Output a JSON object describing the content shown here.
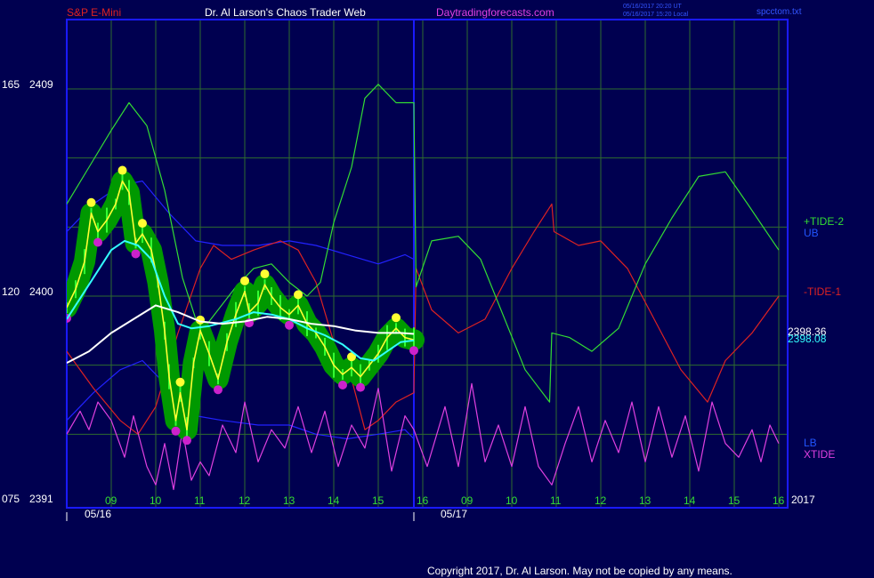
{
  "header": {
    "symbol": "S&P E-Mini",
    "title": "Dr. Al Larson's Chaos Trader Web",
    "site": "Daytradingforecasts.com",
    "timestamp_ut": "05/16/2017 20:20 UT",
    "timestamp_local": "05/16/2017 15:20 Local",
    "file": "spcctom.txt"
  },
  "footer": {
    "copyright": "Copyright 2017, Dr. Al Larson. May not be copied by any means."
  },
  "colors": {
    "background": "#000050",
    "frame": "#1a1aff",
    "grid": "#2e6b2e",
    "tide2": "#33dd33",
    "tide1": "#dd2222",
    "bands": "#2222ff",
    "xtide": "#e040e0",
    "ma_white": "#ffffff",
    "ma_cyan": "#33ffff",
    "price_yellow": "#ffff33",
    "halo_green": "#009900",
    "dot_magenta": "#cc22cc"
  },
  "chart_data": {
    "type": "line",
    "title": "S&P E-Mini",
    "xlabel": "",
    "ylabel": "",
    "grid": true,
    "price_axis": {
      "ticks": [
        2391,
        2400,
        2409
      ],
      "range": [
        2391,
        2409
      ]
    },
    "oscillator_axis": {
      "ticks": [
        "075",
        "120",
        "165"
      ],
      "range": [
        75,
        165
      ]
    },
    "y_tick_labels": [
      {
        "osc": "165",
        "price": "2409"
      },
      {
        "osc": "120",
        "price": "2400"
      },
      {
        "osc": "075",
        "price": "2391"
      }
    ],
    "x_hour_labels": [
      "09",
      "10",
      "11",
      "12",
      "13",
      "14",
      "15",
      "16",
      "09",
      "10",
      "11",
      "12",
      "13",
      "14",
      "15",
      "16"
    ],
    "x_date_labels": [
      "05/16",
      "05/17"
    ],
    "year_label": "2017",
    "right_labels": {
      "tide2": "+TIDE-2",
      "ub": "UB",
      "tide1": "-TIDE-1",
      "lb": "LB",
      "xtide": "XTIDE",
      "value_white": "2398.36",
      "value_cyan": "2398.08"
    },
    "x_domain": [
      8.0,
      24.2
    ],
    "now_x": 15.8,
    "series": [
      {
        "name": "+TIDE-2",
        "axis": "osc",
        "points": [
          [
            8.0,
            140
          ],
          [
            8.5,
            148
          ],
          [
            9.0,
            156
          ],
          [
            9.4,
            162
          ],
          [
            9.8,
            157
          ],
          [
            10.2,
            143
          ],
          [
            10.6,
            124
          ],
          [
            11.0,
            112
          ],
          [
            11.4,
            117
          ],
          [
            11.8,
            122
          ],
          [
            12.2,
            126
          ],
          [
            12.6,
            127
          ],
          [
            13.0,
            123
          ],
          [
            13.4,
            120
          ],
          [
            13.7,
            123
          ],
          [
            14.0,
            136
          ],
          [
            14.4,
            148
          ],
          [
            14.7,
            163
          ],
          [
            15.0,
            166
          ],
          [
            15.4,
            162
          ],
          [
            15.8,
            162
          ],
          [
            15.85,
            122
          ],
          [
            16.2,
            132
          ],
          [
            16.8,
            133
          ],
          [
            17.3,
            128
          ],
          [
            17.8,
            116
          ],
          [
            18.3,
            104
          ],
          [
            18.85,
            97
          ],
          [
            18.9,
            112
          ],
          [
            19.3,
            111
          ],
          [
            19.8,
            108
          ],
          [
            20.4,
            113
          ],
          [
            21.0,
            127
          ],
          [
            21.6,
            137
          ],
          [
            22.2,
            146
          ],
          [
            22.8,
            147
          ],
          [
            23.3,
            140
          ],
          [
            24.0,
            130
          ]
        ]
      },
      {
        "name": "-TIDE-1",
        "axis": "osc",
        "points": [
          [
            8.0,
            108
          ],
          [
            8.6,
            100
          ],
          [
            9.2,
            93
          ],
          [
            9.6,
            90
          ],
          [
            10.0,
            96
          ],
          [
            10.5,
            112
          ],
          [
            11.0,
            126
          ],
          [
            11.3,
            131
          ],
          [
            11.7,
            128
          ],
          [
            12.2,
            130
          ],
          [
            12.8,
            132
          ],
          [
            13.2,
            130
          ],
          [
            13.6,
            123
          ],
          [
            14.0,
            110
          ],
          [
            14.4,
            102
          ],
          [
            14.7,
            91
          ],
          [
            15.0,
            93
          ],
          [
            15.4,
            97
          ],
          [
            15.8,
            99
          ],
          [
            15.85,
            126
          ],
          [
            16.2,
            117
          ],
          [
            16.8,
            112
          ],
          [
            17.4,
            115
          ],
          [
            18.0,
            126
          ],
          [
            18.5,
            134
          ],
          [
            18.9,
            140
          ],
          [
            18.95,
            134
          ],
          [
            19.5,
            131
          ],
          [
            20.0,
            132
          ],
          [
            20.6,
            126
          ],
          [
            21.2,
            115
          ],
          [
            21.8,
            104
          ],
          [
            22.4,
            97
          ],
          [
            22.8,
            106
          ],
          [
            23.4,
            112
          ],
          [
            24.0,
            120
          ]
        ]
      },
      {
        "name": "UB",
        "axis": "osc",
        "points": [
          [
            8.0,
            134
          ],
          [
            8.6,
            140
          ],
          [
            9.2,
            144
          ],
          [
            9.7,
            145
          ],
          [
            10.3,
            138
          ],
          [
            10.9,
            132
          ],
          [
            11.5,
            131
          ],
          [
            12.3,
            131
          ],
          [
            13.0,
            132
          ],
          [
            13.6,
            131
          ],
          [
            14.3,
            129
          ],
          [
            15.0,
            127
          ],
          [
            15.6,
            129
          ],
          [
            15.8,
            128
          ]
        ]
      },
      {
        "name": "LB",
        "axis": "osc",
        "points": [
          [
            8.0,
            93
          ],
          [
            8.6,
            99
          ],
          [
            9.2,
            104
          ],
          [
            9.7,
            106
          ],
          [
            10.3,
            100
          ],
          [
            10.9,
            94
          ],
          [
            11.5,
            93
          ],
          [
            12.3,
            92
          ],
          [
            13.0,
            92
          ],
          [
            13.6,
            90
          ],
          [
            14.3,
            89
          ],
          [
            15.0,
            90
          ],
          [
            15.6,
            91
          ],
          [
            15.8,
            89
          ]
        ]
      },
      {
        "name": "XTIDE",
        "axis": "osc",
        "points": [
          [
            8.0,
            90
          ],
          [
            8.3,
            95
          ],
          [
            8.5,
            91
          ],
          [
            8.7,
            97
          ],
          [
            9.0,
            93
          ],
          [
            9.3,
            85
          ],
          [
            9.5,
            94
          ],
          [
            9.8,
            83
          ],
          [
            10.0,
            79
          ],
          [
            10.2,
            88
          ],
          [
            10.4,
            78
          ],
          [
            10.6,
            91
          ],
          [
            10.8,
            80
          ],
          [
            11.0,
            84
          ],
          [
            11.2,
            81
          ],
          [
            11.5,
            92
          ],
          [
            11.8,
            86
          ],
          [
            12.0,
            97
          ],
          [
            12.3,
            84
          ],
          [
            12.6,
            91
          ],
          [
            12.9,
            87
          ],
          [
            13.2,
            96
          ],
          [
            13.5,
            86
          ],
          [
            13.8,
            95
          ],
          [
            14.1,
            83
          ],
          [
            14.4,
            92
          ],
          [
            14.7,
            87
          ],
          [
            15.0,
            100
          ],
          [
            15.3,
            82
          ],
          [
            15.6,
            94
          ],
          [
            15.8,
            91
          ],
          [
            16.1,
            83
          ],
          [
            16.5,
            96
          ],
          [
            16.8,
            83
          ],
          [
            17.1,
            101
          ],
          [
            17.4,
            84
          ],
          [
            17.7,
            92
          ],
          [
            18.0,
            83
          ],
          [
            18.3,
            96
          ],
          [
            18.6,
            83
          ],
          [
            18.9,
            79
          ],
          [
            19.2,
            88
          ],
          [
            19.5,
            96
          ],
          [
            19.8,
            84
          ],
          [
            20.1,
            93
          ],
          [
            20.4,
            86
          ],
          [
            20.7,
            97
          ],
          [
            21.0,
            84
          ],
          [
            21.3,
            96
          ],
          [
            21.6,
            85
          ],
          [
            21.9,
            94
          ],
          [
            22.2,
            82
          ],
          [
            22.5,
            97
          ],
          [
            22.8,
            88
          ],
          [
            23.1,
            85
          ],
          [
            23.4,
            91
          ],
          [
            23.6,
            84
          ],
          [
            23.8,
            92
          ],
          [
            24.0,
            88
          ]
        ]
      },
      {
        "name": "white average",
        "axis": "price",
        "points": [
          [
            8.0,
            2397.1
          ],
          [
            8.5,
            2397.6
          ],
          [
            9.0,
            2398.4
          ],
          [
            9.5,
            2399.0
          ],
          [
            10.0,
            2399.6
          ],
          [
            10.5,
            2399.3
          ],
          [
            11.0,
            2398.9
          ],
          [
            11.5,
            2398.8
          ],
          [
            12.0,
            2398.9
          ],
          [
            12.5,
            2399.1
          ],
          [
            13.0,
            2399.0
          ],
          [
            13.5,
            2398.8
          ],
          [
            14.0,
            2398.7
          ],
          [
            14.5,
            2398.5
          ],
          [
            15.0,
            2398.4
          ],
          [
            15.5,
            2398.4
          ],
          [
            15.8,
            2398.36
          ]
        ]
      },
      {
        "name": "cyan average",
        "axis": "price",
        "points": [
          [
            8.0,
            2399.0
          ],
          [
            8.5,
            2400.5
          ],
          [
            9.0,
            2402.0
          ],
          [
            9.3,
            2402.4
          ],
          [
            9.6,
            2402.2
          ],
          [
            9.9,
            2401.6
          ],
          [
            10.2,
            2400.0
          ],
          [
            10.5,
            2398.8
          ],
          [
            10.8,
            2398.6
          ],
          [
            11.2,
            2398.7
          ],
          [
            11.8,
            2399.0
          ],
          [
            12.2,
            2399.3
          ],
          [
            12.6,
            2399.2
          ],
          [
            13.0,
            2399.0
          ],
          [
            13.4,
            2398.6
          ],
          [
            13.8,
            2398.3
          ],
          [
            14.2,
            2397.9
          ],
          [
            14.6,
            2397.3
          ],
          [
            14.9,
            2397.2
          ],
          [
            15.2,
            2397.6
          ],
          [
            15.5,
            2398.0
          ],
          [
            15.8,
            2398.08
          ]
        ]
      },
      {
        "name": "price",
        "axis": "price",
        "points": [
          [
            8.0,
            2399.5
          ],
          [
            8.2,
            2400.3
          ],
          [
            8.4,
            2401.5
          ],
          [
            8.55,
            2403.6
          ],
          [
            8.7,
            2402.8
          ],
          [
            8.9,
            2403.3
          ],
          [
            9.1,
            2404.0
          ],
          [
            9.25,
            2405.0
          ],
          [
            9.4,
            2404.5
          ],
          [
            9.55,
            2402.3
          ],
          [
            9.7,
            2402.7
          ],
          [
            9.9,
            2402.0
          ],
          [
            10.05,
            2400.6
          ],
          [
            10.2,
            2398.5
          ],
          [
            10.3,
            2396.5
          ],
          [
            10.45,
            2394.6
          ],
          [
            10.55,
            2395.8
          ],
          [
            10.7,
            2394.2
          ],
          [
            10.85,
            2397.1
          ],
          [
            11.0,
            2398.5
          ],
          [
            11.2,
            2397.5
          ],
          [
            11.4,
            2396.4
          ],
          [
            11.6,
            2398.0
          ],
          [
            11.8,
            2399.2
          ],
          [
            12.0,
            2400.2
          ],
          [
            12.1,
            2399.3
          ],
          [
            12.3,
            2399.7
          ],
          [
            12.45,
            2400.5
          ],
          [
            12.6,
            2400.0
          ],
          [
            12.8,
            2399.5
          ],
          [
            13.0,
            2399.2
          ],
          [
            13.2,
            2399.6
          ],
          [
            13.4,
            2398.8
          ],
          [
            13.6,
            2398.4
          ],
          [
            13.8,
            2397.8
          ],
          [
            14.0,
            2397.0
          ],
          [
            14.2,
            2396.6
          ],
          [
            14.4,
            2396.9
          ],
          [
            14.6,
            2396.5
          ],
          [
            14.8,
            2397.0
          ],
          [
            15.0,
            2397.5
          ],
          [
            15.2,
            2398.2
          ],
          [
            15.4,
            2398.6
          ],
          [
            15.6,
            2398.2
          ],
          [
            15.8,
            2398.1
          ]
        ]
      }
    ]
  }
}
